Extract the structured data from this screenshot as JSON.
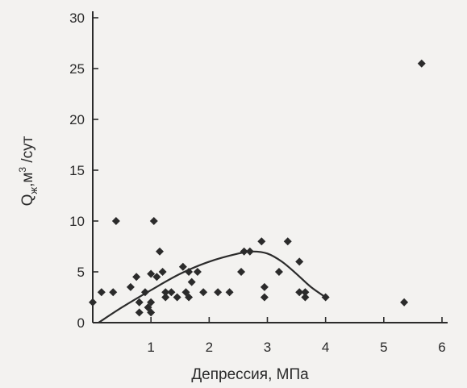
{
  "chart_data": {
    "type": "scatter",
    "xlabel": "Депрессия, МПа",
    "ylabel": {
      "base": "Q",
      "sub": "ж",
      "mid": ",м",
      "sup": "3",
      "tail": " /сут"
    },
    "xlim": [
      0,
      6
    ],
    "ylim": [
      0,
      30
    ],
    "xticks": [
      1,
      2,
      3,
      4,
      5,
      6
    ],
    "yticks": [
      0,
      5,
      10,
      15,
      20,
      25,
      30
    ],
    "grid": false,
    "colors": {
      "marker": "#2b2b2b",
      "axis": "#2b2b2b"
    },
    "series": [
      {
        "kind": "points",
        "marker": "diamond",
        "points": [
          [
            0.0,
            2.0
          ],
          [
            0.15,
            3.0
          ],
          [
            0.35,
            3.0
          ],
          [
            0.4,
            10.0
          ],
          [
            0.65,
            3.5
          ],
          [
            0.75,
            4.5
          ],
          [
            0.8,
            2.0
          ],
          [
            0.8,
            1.0
          ],
          [
            0.9,
            3.0
          ],
          [
            0.95,
            1.5
          ],
          [
            1.0,
            4.8
          ],
          [
            1.0,
            2.0
          ],
          [
            1.0,
            1.0
          ],
          [
            1.05,
            10.0
          ],
          [
            1.1,
            4.5
          ],
          [
            1.15,
            7.0
          ],
          [
            1.2,
            5.0
          ],
          [
            1.25,
            3.0
          ],
          [
            1.25,
            2.5
          ],
          [
            1.35,
            3.0
          ],
          [
            1.45,
            2.5
          ],
          [
            1.55,
            5.5
          ],
          [
            1.6,
            3.0
          ],
          [
            1.65,
            5.0
          ],
          [
            1.65,
            2.5
          ],
          [
            1.7,
            4.0
          ],
          [
            1.8,
            5.0
          ],
          [
            1.9,
            3.0
          ],
          [
            2.15,
            3.0
          ],
          [
            2.35,
            3.0
          ],
          [
            2.55,
            5.0
          ],
          [
            2.6,
            7.0
          ],
          [
            2.7,
            7.0
          ],
          [
            2.9,
            8.0
          ],
          [
            2.95,
            3.5
          ],
          [
            2.95,
            2.5
          ],
          [
            3.2,
            5.0
          ],
          [
            3.35,
            8.0
          ],
          [
            3.55,
            3.0
          ],
          [
            3.55,
            6.0
          ],
          [
            3.65,
            3.0
          ],
          [
            3.65,
            2.5
          ],
          [
            4.0,
            2.5
          ],
          [
            5.35,
            2.0
          ],
          [
            5.65,
            25.5
          ]
        ]
      },
      {
        "kind": "curve",
        "points": [
          [
            0.1,
            0.0
          ],
          [
            0.5,
            1.5
          ],
          [
            1.0,
            3.2
          ],
          [
            1.5,
            4.8
          ],
          [
            2.0,
            6.0
          ],
          [
            2.5,
            6.8
          ],
          [
            2.75,
            7.0
          ],
          [
            3.0,
            6.8
          ],
          [
            3.25,
            6.0
          ],
          [
            3.5,
            4.8
          ],
          [
            3.75,
            3.5
          ],
          [
            4.0,
            2.5
          ]
        ]
      }
    ]
  }
}
